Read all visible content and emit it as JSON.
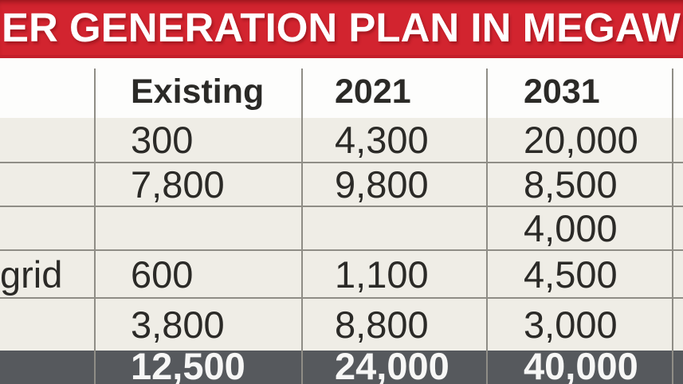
{
  "banner": {
    "title": "ER GENERATION PLAN IN MEGAW",
    "bg_color": "#d2242f",
    "text_color": "#ffffff"
  },
  "table": {
    "header": {
      "label": "",
      "existing": "Existing",
      "y2021": "2021",
      "y2031": "2031"
    },
    "rows": [
      {
        "label": "",
        "existing": "300",
        "y2021": "4,300",
        "y2031": "20,000"
      },
      {
        "label": "",
        "existing": "7,800",
        "y2021": "9,800",
        "y2031": "8,500"
      },
      {
        "label": "",
        "existing": "",
        "y2021": "",
        "y2031": "4,000"
      },
      {
        "label": "grid",
        "existing": "600",
        "y2021": "1,100",
        "y2031": "4,500"
      },
      {
        "label": "",
        "existing": "3,800",
        "y2021": "8,800",
        "y2031": "3,000"
      }
    ],
    "total": {
      "label": "",
      "existing": "12,500",
      "y2021": "24,000",
      "y2031": "40,000"
    }
  },
  "colors": {
    "banner_red": "#d2242f",
    "row_background": "#efede6",
    "grid_line": "#8f8d86",
    "total_row_background": "#56595d",
    "text": "#2b2a27"
  },
  "chart_data": {
    "type": "table",
    "title": "ER GENERATION PLAN IN MEGAW",
    "columns": [
      "",
      "Existing",
      "2021",
      "2031"
    ],
    "rows": [
      [
        "",
        "300",
        "4,300",
        "20,000"
      ],
      [
        "",
        "7,800",
        "9,800",
        "8,500"
      ],
      [
        "",
        "",
        "",
        "4,000"
      ],
      [
        "grid",
        "600",
        "1,100",
        "4,500"
      ],
      [
        "",
        "3,800",
        "8,800",
        "3,000"
      ],
      [
        "",
        "12,500",
        "24,000",
        "40,000"
      ]
    ],
    "notes": "Totals row (12,500 / 24,000 / 40,000) styled dark; row labels cropped off left edge of image; title cropped on both sides"
  }
}
